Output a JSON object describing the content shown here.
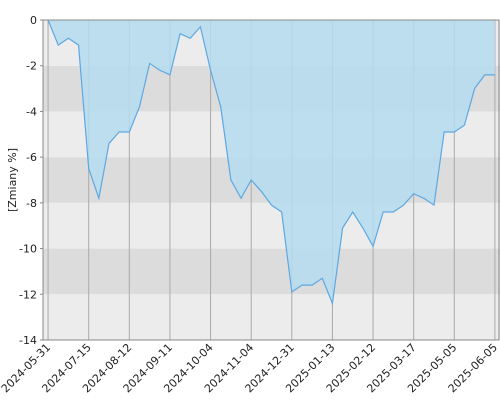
{
  "chart_data": {
    "type": "area",
    "y_label": "[Zmiany %]",
    "categories": [
      "2024-05-31",
      null,
      null,
      null,
      "2024-07-15",
      null,
      null,
      null,
      "2024-08-12",
      null,
      null,
      null,
      "2024-09-11",
      null,
      null,
      null,
      "2024-10-04",
      null,
      null,
      null,
      "2024-11-04",
      null,
      null,
      null,
      "2024-12-31",
      null,
      null,
      null,
      "2025-01-13",
      null,
      null,
      null,
      "2025-02-12",
      null,
      null,
      null,
      "2025-03-17",
      null,
      null,
      null,
      "2025-05-05",
      null,
      null,
      null,
      "2025-06-05"
    ],
    "values": [
      0,
      -1.1,
      -0.8,
      -1.1,
      -6.5,
      -7.8,
      -5.4,
      -4.9,
      -4.9,
      -3.8,
      -1.9,
      -2.2,
      -2.4,
      -0.6,
      -0.8,
      -0.3,
      -2.2,
      -3.8,
      -7.0,
      -7.8,
      -7.0,
      -7.5,
      -8.1,
      -8.4,
      -11.9,
      -11.6,
      -11.6,
      -11.3,
      -12.4,
      -9.1,
      -8.4,
      -9.1,
      -9.9,
      -8.4,
      -8.4,
      -8.1,
      -7.6,
      -7.8,
      -8.1,
      -4.9,
      -4.9,
      -4.6,
      -3.0,
      -2.4,
      -2.4
    ],
    "color": "#5ea8e2",
    "fill": "#b4dcee",
    "ylim": [
      -14,
      0
    ],
    "yticks": [
      0,
      -2,
      -4,
      -6,
      -8,
      -10,
      -12,
      -14
    ],
    "bands": [
      "#ececec",
      "#dcdcdc"
    ]
  }
}
